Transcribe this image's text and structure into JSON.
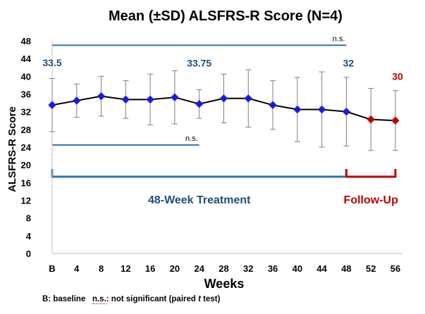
{
  "chart_data": {
    "type": "line",
    "title": "Mean (±SD) ALSFRS-R Score (N=4)",
    "xlabel": "Weeks",
    "ylabel": "ALSFRS-R Score",
    "ylim": [
      0,
      48
    ],
    "yticks": [
      "0",
      "4",
      "8",
      "12",
      "16",
      "20",
      "24",
      "28",
      "32",
      "36",
      "40",
      "44",
      "48"
    ],
    "categories": [
      "B",
      "4",
      "8",
      "12",
      "16",
      "20",
      "24",
      "28",
      "32",
      "36",
      "40",
      "44",
      "48",
      "52",
      "56"
    ],
    "series": [
      {
        "values": [
          33.5,
          34.5,
          35.5,
          34.75,
          34.75,
          35.25,
          33.75,
          35,
          35,
          33.5,
          32.5,
          32.5,
          32,
          30.25,
          30
        ],
        "sd": [
          6,
          3.75,
          4.5,
          4.25,
          5.75,
          6,
          3.25,
          5.5,
          6.5,
          5.5,
          7.25,
          8.5,
          7.75,
          7,
          6.75
        ],
        "colors": [
          "#1a1ae6",
          "#1a1ae6",
          "#1a1ae6",
          "#1a1ae6",
          "#1a1ae6",
          "#1a1ae6",
          "#1a1ae6",
          "#1a1ae6",
          "#1a1ae6",
          "#1a1ae6",
          "#1a1ae6",
          "#1a1ae6",
          "#1a1ae6",
          "#c00000",
          "#c00000"
        ]
      }
    ],
    "data_labels": [
      {
        "index": 0,
        "text": "33.5",
        "color": "#1f4e79"
      },
      {
        "index": 6,
        "text": "33.75",
        "color": "#1f4e79"
      },
      {
        "index": 12,
        "text": "32",
        "color": "#1f4e79"
      },
      {
        "index": 14,
        "text": "30",
        "color": "#c00000"
      }
    ],
    "significance": [
      {
        "from": 0,
        "to": 12,
        "y": 47,
        "label": "n.s."
      },
      {
        "from": 0,
        "to": 6,
        "y": 24.5,
        "label": "n.s."
      }
    ],
    "phases": [
      {
        "from": 0,
        "to": 12,
        "label": "48-Week Treatment",
        "color": "#2e75b6",
        "text_color": "#1f4e79"
      },
      {
        "from": 12,
        "to": 14,
        "label": "Follow-Up",
        "color": "#c00000",
        "text_color": "#c00000"
      }
    ],
    "grid": false,
    "legend": "none"
  },
  "footnote": {
    "baseline": "B: baseline",
    "ns_abbr": "n.s.",
    "ns_text": ": not significant (paired ",
    "ns_t": "t",
    "ns_tail": " test)"
  }
}
